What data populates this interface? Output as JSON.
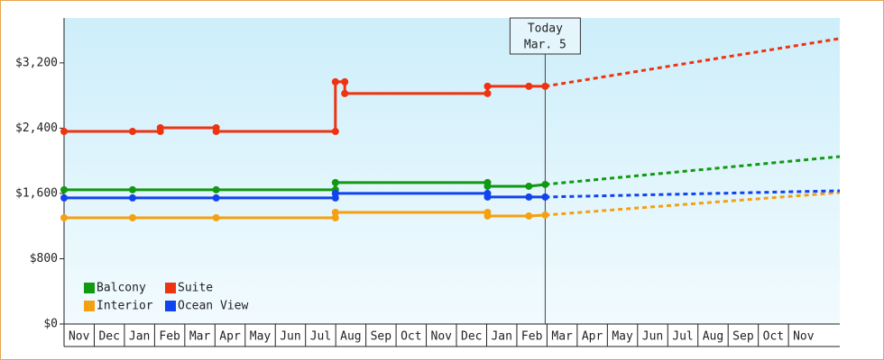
{
  "chart_data": {
    "type": "step-line",
    "categories": [
      "Nov",
      "Dec",
      "Jan",
      "Feb",
      "Mar",
      "Apr",
      "May",
      "Jun",
      "Jul",
      "Aug",
      "Sep",
      "Oct",
      "Nov",
      "Dec",
      "Jan",
      "Feb",
      "Mar",
      "Apr",
      "May",
      "Jun",
      "Jul",
      "Aug",
      "Sep",
      "Oct",
      "Nov"
    ],
    "xlim": [
      0,
      25.7
    ],
    "ylim": [
      0,
      3750
    ],
    "yticks": [
      {
        "value": 0,
        "label": "$0"
      },
      {
        "value": 800,
        "label": "$800"
      },
      {
        "value": 1600,
        "label": "$1,600"
      },
      {
        "value": 2400,
        "label": "$2,400"
      },
      {
        "value": 3200,
        "label": "$3,200"
      }
    ],
    "grid": false,
    "legend": "lower left",
    "annotation": {
      "x": 15.94,
      "lines": [
        "Today",
        "Mar. 5"
      ]
    },
    "series": [
      {
        "name": "Balcony",
        "color": "#119911",
        "x": [
          0,
          2.27,
          5.04,
          8.99,
          8.99,
          14.03,
          14.03,
          15.4,
          15.94
        ],
        "values": [
          1645,
          1645,
          1645,
          1645,
          1733,
          1733,
          1688,
          1688,
          1710
        ],
        "forecast_x": [
          15.94,
          25.7
        ],
        "forecast_values": [
          1710,
          2052
        ]
      },
      {
        "name": "Suite",
        "color": "#ee3311",
        "x": [
          0,
          2.27,
          3.19,
          3.19,
          5.04,
          5.04,
          8.99,
          8.99,
          9.3,
          9.3,
          14.03,
          14.03,
          15.4,
          15.94
        ],
        "values": [
          2360,
          2360,
          2360,
          2405,
          2405,
          2360,
          2360,
          2968,
          2968,
          2825,
          2825,
          2913,
          2913,
          2913
        ],
        "forecast_x": [
          15.94,
          25.7
        ],
        "forecast_values": [
          2913,
          3498
        ]
      },
      {
        "name": "Interior",
        "color": "#f5a010",
        "x": [
          0,
          2.27,
          5.04,
          8.99,
          8.99,
          14.03,
          14.03,
          15.4,
          15.94
        ],
        "values": [
          1302,
          1302,
          1302,
          1302,
          1368,
          1368,
          1324,
          1324,
          1335
        ],
        "forecast_x": [
          15.94,
          25.7
        ],
        "forecast_values": [
          1335,
          1611
        ]
      },
      {
        "name": "Ocean View",
        "color": "#1144ee",
        "x": [
          0,
          2.27,
          5.04,
          8.99,
          8.99,
          14.03,
          14.03,
          15.4,
          15.94
        ],
        "values": [
          1545,
          1545,
          1545,
          1545,
          1600,
          1600,
          1556,
          1556,
          1556
        ],
        "forecast_x": [
          15.94,
          25.7
        ],
        "forecast_values": [
          1556,
          1633
        ]
      }
    ]
  }
}
